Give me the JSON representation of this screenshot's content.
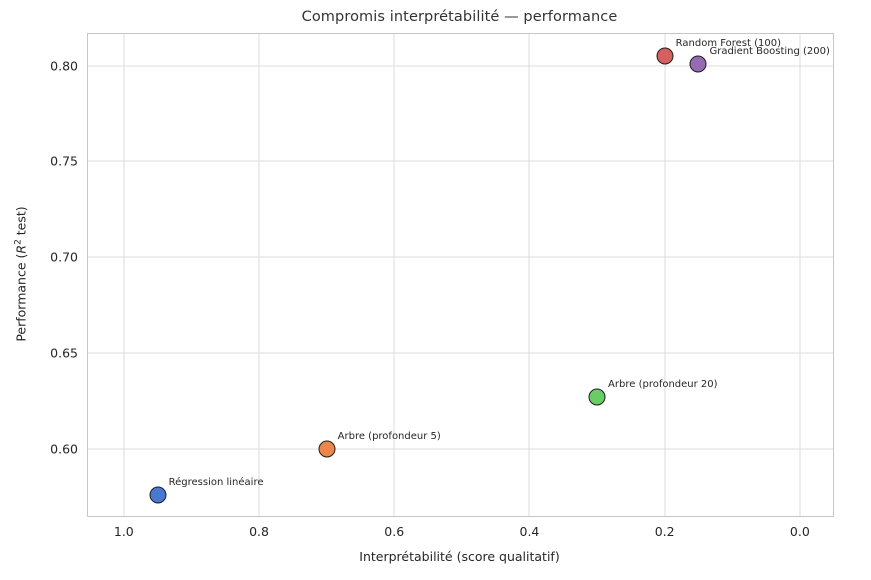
{
  "title": "Compromis interprétabilité — performance",
  "chart_data": {
    "type": "scatter",
    "title": "Compromis interprétabilité — performance",
    "xlabel": "Interprétabilité (score qualitatif)",
    "ylabel": "Performance (R² test)",
    "ylabel_parts": {
      "pre": "Performance (",
      "var": "R",
      "sup": "2",
      "post": " test)"
    },
    "x_axis_inverted": true,
    "grid": true,
    "legend": "none",
    "xlim": [
      1.053,
      -0.049
    ],
    "ylim": [
      0.565,
      0.8165
    ],
    "x_ticks": [
      1.0,
      0.8,
      0.6,
      0.4,
      0.2,
      0.0
    ],
    "x_tick_labels": [
      "1.0",
      "0.8",
      "0.6",
      "0.4",
      "0.2",
      "0.0"
    ],
    "y_ticks": [
      0.6,
      0.65,
      0.7,
      0.75,
      0.8
    ],
    "y_tick_labels": [
      "0.60",
      "0.65",
      "0.70",
      "0.75",
      "0.80"
    ],
    "marker_edge_color": "#1f1f1f",
    "points": [
      {
        "label": "Régression linéaire",
        "x": 0.95,
        "y": 0.576,
        "color": "#4878d0"
      },
      {
        "label": "Arbre (profondeur 5)",
        "x": 0.7,
        "y": 0.6,
        "color": "#ee854a"
      },
      {
        "label": "Arbre (profondeur 20)",
        "x": 0.3,
        "y": 0.627,
        "color": "#6acc64"
      },
      {
        "label": "Random Forest (100)",
        "x": 0.2,
        "y": 0.805,
        "color": "#d65f5f"
      },
      {
        "label": "Gradient Boosting (200)",
        "x": 0.15,
        "y": 0.801,
        "color": "#956cb4"
      }
    ]
  }
}
